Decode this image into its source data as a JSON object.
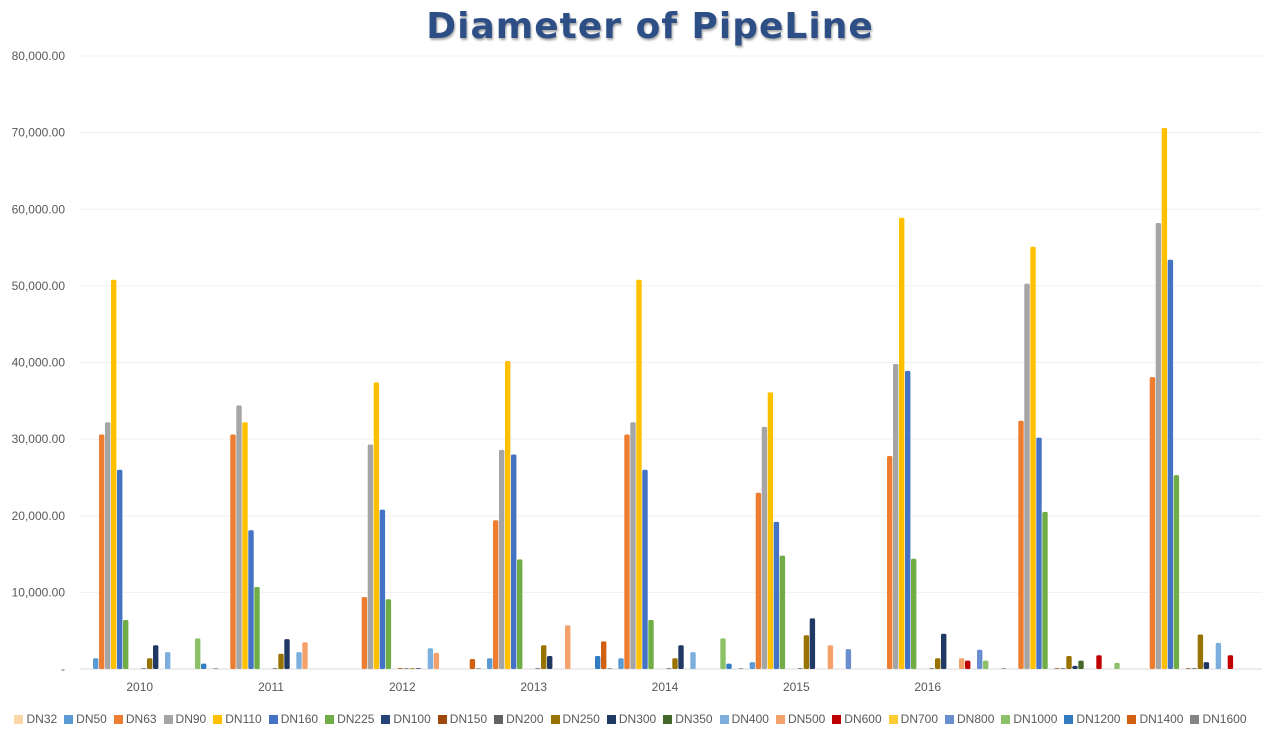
{
  "chart_data": {
    "type": "bar",
    "title": "Diameter of PipeLine",
    "xlabel": "",
    "ylabel": "",
    "ylim": [
      0,
      80000
    ],
    "yticks": [
      "-",
      "10,000.00",
      "20,000.00",
      "30,000.00",
      "40,000.00",
      "50,000.00",
      "60,000.00",
      "70,000.00",
      "80,000.00"
    ],
    "grid": true,
    "legend_position": "bottom",
    "categories": [
      "2010",
      "2011",
      "2012",
      "2013",
      "2014",
      "2015",
      "2016",
      "",
      ""
    ],
    "series": [
      {
        "name": "DN32",
        "color": "#fbd7a8",
        "values": [
          0,
          0,
          0,
          0,
          0,
          0,
          0,
          0,
          0
        ]
      },
      {
        "name": "DN50",
        "color": "#5b9bd5",
        "values": [
          1400,
          0,
          0,
          1400,
          1400,
          900,
          0,
          0,
          0
        ]
      },
      {
        "name": "DN63",
        "color": "#ed7d31",
        "values": [
          30600,
          30600,
          9400,
          19400,
          30600,
          23000,
          27800,
          32400,
          38100
        ]
      },
      {
        "name": "DN90",
        "color": "#a5a5a5",
        "values": [
          32200,
          34400,
          29300,
          28600,
          32200,
          31600,
          39800,
          50300,
          58200
        ]
      },
      {
        "name": "DN110",
        "color": "#ffc000",
        "values": [
          50800,
          32200,
          37400,
          40200,
          50800,
          36100,
          58900,
          55100,
          70600
        ]
      },
      {
        "name": "DN160",
        "color": "#4472c4",
        "values": [
          26000,
          18100,
          20800,
          28000,
          26000,
          19200,
          38900,
          30200,
          53400
        ]
      },
      {
        "name": "DN225",
        "color": "#70ad47",
        "values": [
          6400,
          10700,
          9100,
          14300,
          6400,
          14800,
          14400,
          20500,
          25300
        ]
      },
      {
        "name": "DN100",
        "color": "#264478",
        "values": [
          0,
          0,
          0,
          0,
          0,
          0,
          0,
          0,
          0
        ]
      },
      {
        "name": "DN150",
        "color": "#9e480e",
        "values": [
          0,
          0,
          100,
          0,
          0,
          0,
          0,
          100,
          100
        ]
      },
      {
        "name": "DN200",
        "color": "#636363",
        "values": [
          100,
          100,
          100,
          100,
          100,
          100,
          100,
          100,
          100
        ]
      },
      {
        "name": "DN250",
        "color": "#997300",
        "values": [
          1400,
          2000,
          100,
          3100,
          1400,
          4400,
          1400,
          1700,
          4500
        ]
      },
      {
        "name": "DN300",
        "color": "#203864",
        "values": [
          3100,
          3900,
          100,
          1700,
          3100,
          6600,
          4600,
          400,
          900
        ]
      },
      {
        "name": "DN350",
        "color": "#43682b",
        "values": [
          0,
          0,
          0,
          0,
          0,
          0,
          0,
          1100,
          0
        ]
      },
      {
        "name": "DN400",
        "color": "#7cafdd",
        "values": [
          2200,
          2200,
          2700,
          0,
          2200,
          0,
          0,
          0,
          3400
        ]
      },
      {
        "name": "DN500",
        "color": "#f4a16b",
        "values": [
          0,
          3500,
          2100,
          5700,
          0,
          3100,
          1400,
          0,
          0
        ]
      },
      {
        "name": "DN600",
        "color": "#c00000",
        "values": [
          0,
          0,
          0,
          0,
          0,
          0,
          1100,
          1800,
          1800
        ]
      },
      {
        "name": "DN700",
        "color": "#ffcd33",
        "values": [
          0,
          0,
          0,
          0,
          0,
          0,
          0,
          0,
          0
        ]
      },
      {
        "name": "DN800",
        "color": "#698ed0",
        "values": [
          0,
          0,
          0,
          0,
          0,
          2600,
          2500,
          0,
          0
        ]
      },
      {
        "name": "DN1000",
        "color": "#8cc168",
        "values": [
          4000,
          0,
          0,
          0,
          4000,
          0,
          1100,
          800,
          0
        ]
      },
      {
        "name": "DN1200",
        "color": "#327dc2",
        "values": [
          700,
          0,
          0,
          1700,
          700,
          0,
          0,
          0,
          0
        ]
      },
      {
        "name": "DN1400",
        "color": "#d26012",
        "values": [
          0,
          0,
          1300,
          3600,
          0,
          0,
          0,
          0,
          0
        ]
      },
      {
        "name": "DN1600",
        "color": "#848484",
        "values": [
          100,
          0,
          100,
          100,
          100,
          0,
          100,
          0,
          0
        ]
      }
    ]
  }
}
